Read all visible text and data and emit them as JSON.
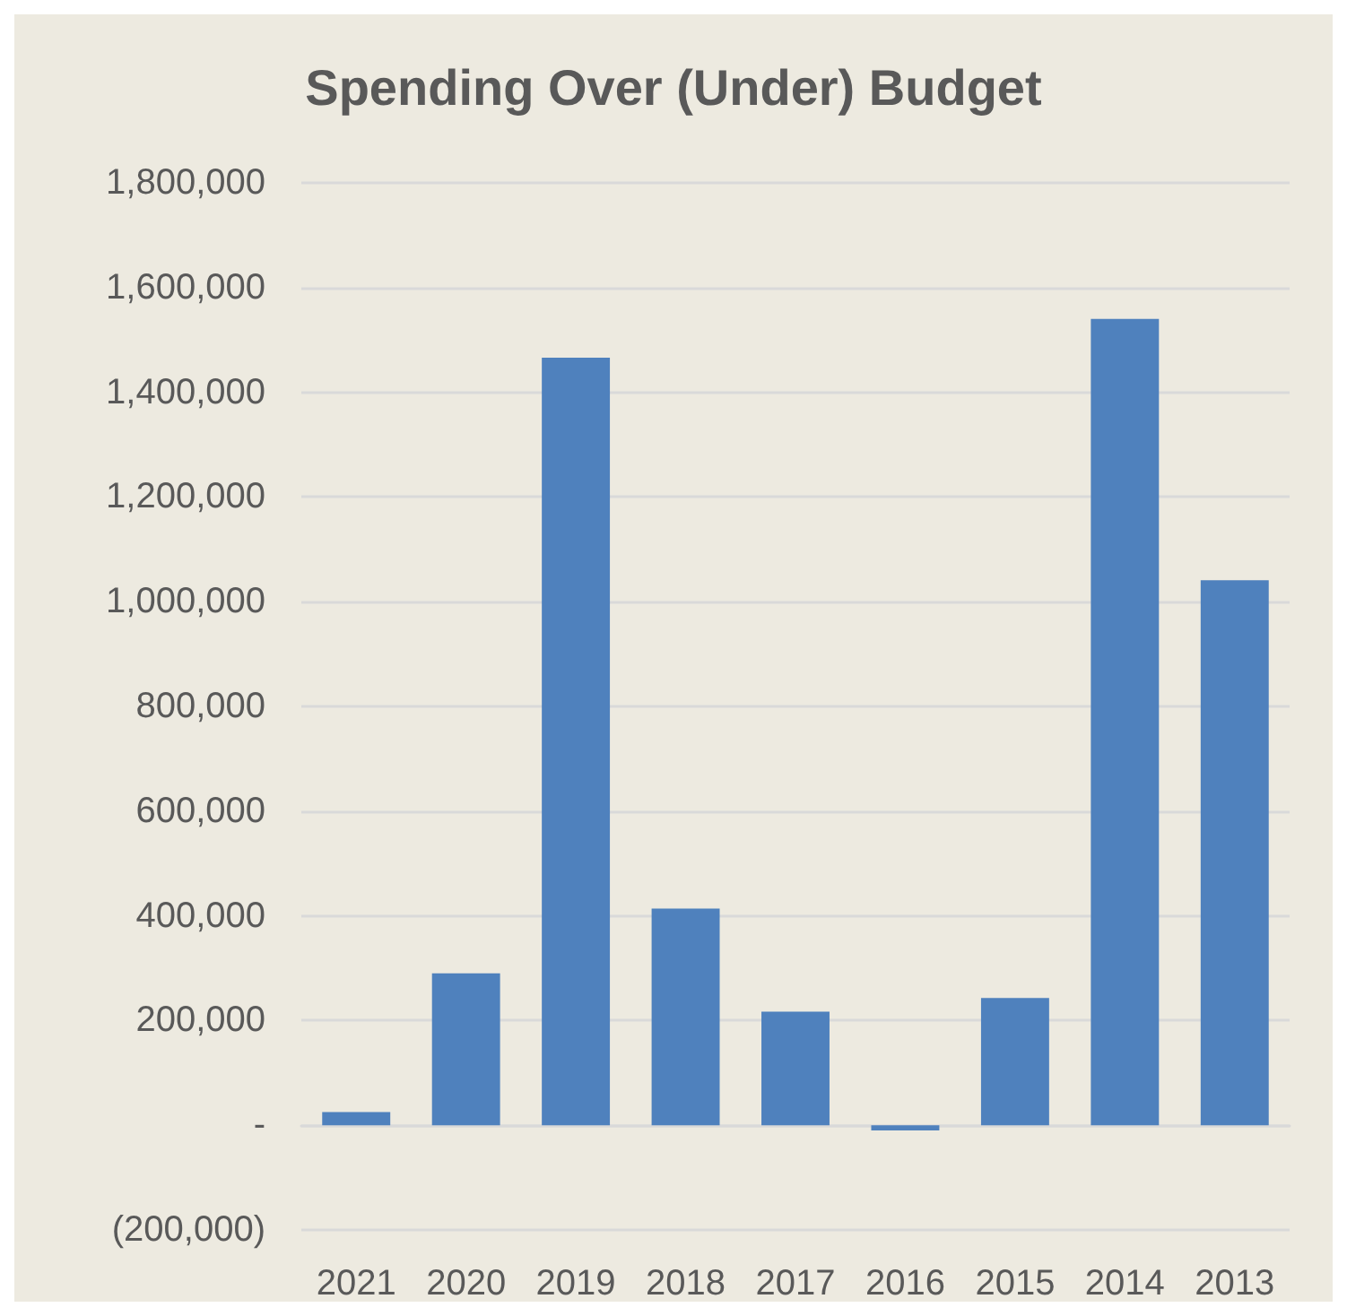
{
  "chart_data": {
    "type": "bar",
    "title": "Spending Over (Under) Budget",
    "categories": [
      "2021",
      "2020",
      "2019",
      "2018",
      "2017",
      "2016",
      "2015",
      "2014",
      "2013"
    ],
    "values": [
      25000,
      290000,
      1466000,
      414000,
      217000,
      -10000,
      243000,
      1540000,
      1041000
    ],
    "color": "#4f81bd",
    "ylim": [
      -200000,
      1800000
    ],
    "yticks": [
      {
        "value": -200000,
        "label": "(200,000)"
      },
      {
        "value": 0,
        "label": "-"
      },
      {
        "value": 200000,
        "label": "200,000"
      },
      {
        "value": 400000,
        "label": "400,000"
      },
      {
        "value": 600000,
        "label": "600,000"
      },
      {
        "value": 800000,
        "label": "800,000"
      },
      {
        "value": 1000000,
        "label": "1,000,000"
      },
      {
        "value": 1200000,
        "label": "1,200,000"
      },
      {
        "value": 1400000,
        "label": "1,400,000"
      },
      {
        "value": 1600000,
        "label": "1,600,000"
      },
      {
        "value": 1800000,
        "label": "1,800,000"
      }
    ],
    "grid": "y"
  }
}
